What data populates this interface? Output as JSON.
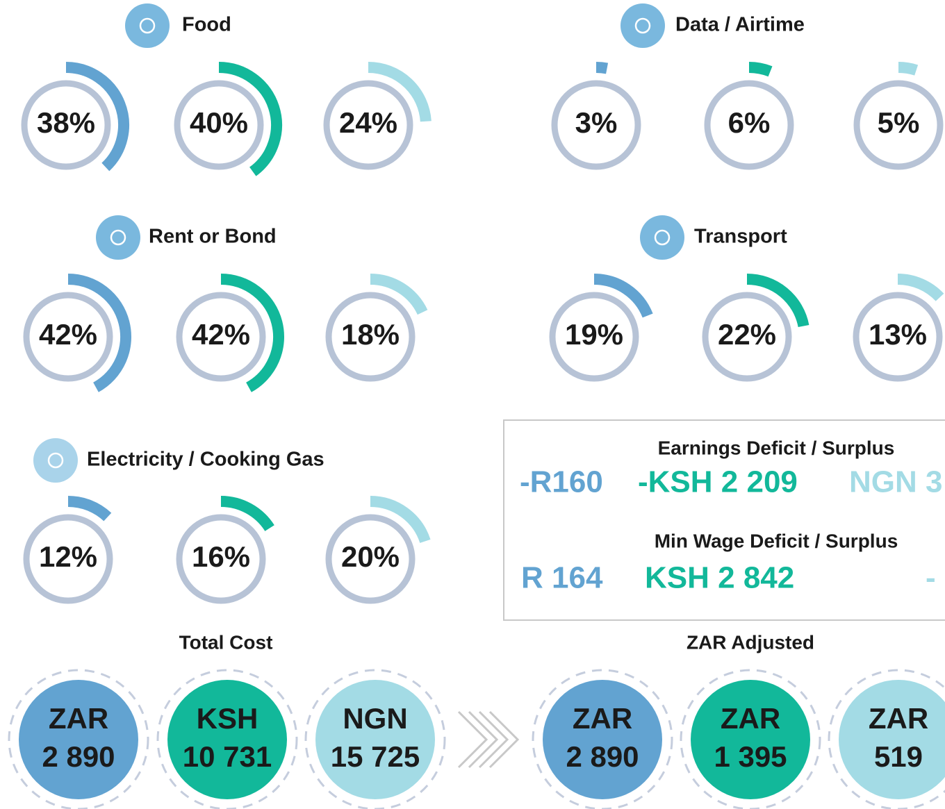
{
  "colors": [
    "#62a3d1",
    "#12b89a",
    "#a3dbe5"
  ],
  "gauges": [
    {
      "title": "Food",
      "values": [
        38,
        40,
        24
      ],
      "value_labels": [
        "38%",
        "40%",
        "24%"
      ]
    },
    {
      "title": "Data / Airtime",
      "values": [
        3,
        6,
        5
      ],
      "value_labels": [
        "3%",
        "6%",
        "5%"
      ]
    },
    {
      "title": "Rent or Bond",
      "values": [
        42,
        42,
        18
      ],
      "value_labels": [
        "42%",
        "42%",
        "18%"
      ]
    },
    {
      "title": "Transport",
      "values": [
        19,
        22,
        13
      ],
      "value_labels": [
        "19%",
        "22%",
        "13%"
      ]
    },
    {
      "title": "Electricity / Cooking Gas",
      "values": [
        12,
        16,
        20
      ],
      "value_labels": [
        "12%",
        "16%",
        "20%"
      ]
    }
  ],
  "balances": [
    {
      "title": "Earnings Deficit / Surplus",
      "items": [
        "-R160",
        "-KSH 2 209",
        "NGN 3"
      ]
    },
    {
      "title": "Min Wage Deficit / Surplus",
      "items": [
        "R 164",
        "KSH 2 842",
        "-"
      ]
    }
  ],
  "totals": [
    {
      "title": "Total Cost",
      "items": [
        {
          "currency": "ZAR",
          "amount": "2 890"
        },
        {
          "currency": "KSH",
          "amount": "10 731"
        },
        {
          "currency": "NGN",
          "amount": "15 725"
        }
      ]
    },
    {
      "title": "ZAR Adjusted",
      "items": [
        {
          "currency": "ZAR",
          "amount": "2 890"
        },
        {
          "currency": "ZAR",
          "amount": "1 395"
        },
        {
          "currency": "ZAR",
          "amount": "519"
        }
      ]
    }
  ]
}
